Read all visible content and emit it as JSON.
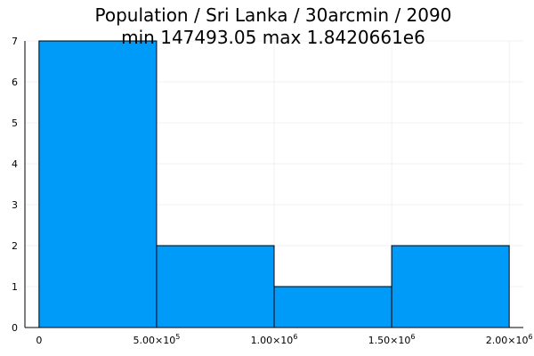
{
  "chart_data": {
    "type": "bar",
    "title": "Population / Sri Lanka / 30arcmin / 2090",
    "subtitle": "min 147493.05  max 1.8420661e6",
    "xlabel": "",
    "ylabel": "",
    "bins": [
      {
        "x0": 0,
        "x1": 500000,
        "count": 7
      },
      {
        "x0": 500000,
        "x1": 1000000,
        "count": 2
      },
      {
        "x0": 1000000,
        "x1": 1500000,
        "count": 1
      },
      {
        "x0": 1500000,
        "x1": 2000000,
        "count": 2
      }
    ],
    "xlim": [
      -60000,
      2060000
    ],
    "ylim": [
      0,
      7
    ],
    "x_ticks": [
      {
        "value": 0,
        "mantissa": "0",
        "exp": ""
      },
      {
        "value": 500000,
        "mantissa": "5.00×10",
        "exp": "5"
      },
      {
        "value": 1000000,
        "mantissa": "1.00×10",
        "exp": "6"
      },
      {
        "value": 1500000,
        "mantissa": "1.50×10",
        "exp": "6"
      },
      {
        "value": 2000000,
        "mantissa": "2.00×10",
        "exp": "6"
      }
    ],
    "y_ticks": [
      0,
      1,
      2,
      3,
      4,
      5,
      6,
      7
    ],
    "grid": true,
    "legend": "none",
    "bar_color": "#009af9"
  }
}
